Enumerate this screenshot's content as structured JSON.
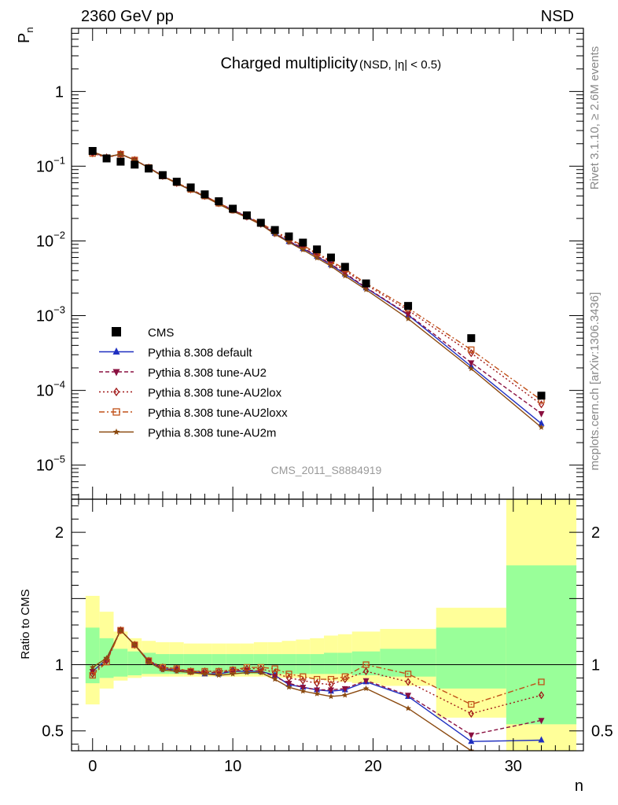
{
  "header": {
    "energy_label": "2360 GeV pp",
    "process_label": "NSD",
    "rivet_label": "Rivet 3.1.10, ≥ 2.6M events",
    "source_label": "mcplots.cern.ch [arXiv:1306.3436]",
    "analysis_id": "CMS_2011_S8884919"
  },
  "chart_data": [
    {
      "type": "scatter",
      "panel": "main",
      "title": "Charged multiplicity",
      "subtitle": "(NSD, |η| < 0.5)",
      "ylabel": "P",
      "ylabel_sub": "n",
      "yscale": "log",
      "ylim": [
        3.5e-06,
        7
      ],
      "xlim": [
        -1.5,
        35
      ],
      "x_ticks": [
        0,
        10,
        20,
        30
      ],
      "y_ticks": [
        {
          "value": 1,
          "base": "1",
          "exp": ""
        },
        {
          "value": 0.1,
          "base": "10",
          "exp": "−1"
        },
        {
          "value": 0.01,
          "base": "10",
          "exp": "−2"
        },
        {
          "value": 0.001,
          "base": "10",
          "exp": "−3"
        },
        {
          "value": 0.0001,
          "base": "10",
          "exp": "−4"
        },
        {
          "value": 1e-05,
          "base": "10",
          "exp": "−5"
        }
      ],
      "legend_position": "bottom-left",
      "x": [
        0,
        1,
        2,
        3,
        4,
        5,
        6,
        7,
        8,
        9,
        10,
        11,
        12,
        13,
        14,
        15,
        16,
        17,
        18,
        19.5,
        22.5,
        27,
        32
      ],
      "data": {
        "name": "CMS",
        "color": "#000000",
        "values": [
          0.16,
          0.127,
          0.115,
          0.105,
          0.093,
          0.076,
          0.062,
          0.052,
          0.042,
          0.034,
          0.027,
          0.022,
          0.0175,
          0.014,
          0.0115,
          0.0095,
          0.0077,
          0.006,
          0.0045,
          0.0027,
          0.00135,
          0.0005,
          8.5e-05
        ]
      },
      "series": [
        {
          "name": "Pythia 8.308 default",
          "color": "#1f2fc0",
          "marker": "triangle-up",
          "dash": "",
          "values": [
            0.152,
            0.132,
            0.145,
            0.121,
            0.096,
            0.074,
            0.059,
            0.048,
            0.039,
            0.032,
            0.026,
            0.021,
            0.0168,
            0.0126,
            0.0098,
            0.0079,
            0.0062,
            0.0048,
            0.0036,
            0.00235,
            0.00102,
            0.00021,
            3.6e-05
          ]
        },
        {
          "name": "Pythia 8.308 tune-AU2",
          "color": "#8a1040",
          "marker": "triangle-down",
          "dash": "5,3",
          "values": [
            0.152,
            0.132,
            0.145,
            0.121,
            0.096,
            0.074,
            0.059,
            0.049,
            0.04,
            0.032,
            0.026,
            0.021,
            0.0168,
            0.0126,
            0.0099,
            0.0081,
            0.0063,
            0.0049,
            0.0037,
            0.00238,
            0.00104,
            0.000235,
            4.9e-05
          ]
        },
        {
          "name": "Pythia 8.308 tune-AU2lox",
          "color": "#a01818",
          "marker": "diamond-open",
          "dash": "2,3",
          "values": [
            0.149,
            0.131,
            0.145,
            0.121,
            0.096,
            0.074,
            0.06,
            0.049,
            0.04,
            0.032,
            0.026,
            0.0215,
            0.017,
            0.0132,
            0.0104,
            0.0085,
            0.0067,
            0.0052,
            0.004,
            0.0026,
            0.00118,
            0.000315,
            6.5e-05
          ]
        },
        {
          "name": "Pythia 8.308 tune-AU2loxx",
          "color": "#c05018",
          "marker": "square-open",
          "dash": "7,3,2,3",
          "values": [
            0.148,
            0.13,
            0.145,
            0.121,
            0.096,
            0.074,
            0.06,
            0.049,
            0.04,
            0.032,
            0.026,
            0.0215,
            0.0172,
            0.0136,
            0.0107,
            0.0087,
            0.0069,
            0.0054,
            0.0042,
            0.0027,
            0.00126,
            0.00035,
            7.4e-05
          ]
        },
        {
          "name": "Pythia 8.308 tune-AU2m",
          "color": "#8b4a10",
          "marker": "star",
          "dash": "",
          "values": [
            0.156,
            0.133,
            0.145,
            0.121,
            0.095,
            0.073,
            0.059,
            0.048,
            0.039,
            0.031,
            0.025,
            0.0205,
            0.0165,
            0.0123,
            0.0096,
            0.0076,
            0.0059,
            0.0046,
            0.0034,
            0.00223,
            0.00091,
            0.000195,
            3.2e-05
          ]
        }
      ]
    },
    {
      "type": "line",
      "panel": "ratio",
      "ylabel": "Ratio to CMS",
      "xlabel": "n",
      "ylim": [
        0.35,
        2.25
      ],
      "xlim": [
        -1.5,
        35
      ],
      "y_ticks": [
        0.5,
        1,
        2
      ],
      "x_ticks": [
        0,
        10,
        20,
        30
      ],
      "reference_line": 1,
      "band_colors": {
        "inner": "#99ff99",
        "outer": "#ffff99"
      },
      "bins": [
        {
          "lo": -0.5,
          "hi": 0.5,
          "in": [
            0.86,
            1.28
          ],
          "out": [
            0.7,
            1.52
          ]
        },
        {
          "lo": 0.5,
          "hi": 1.5,
          "in": [
            0.9,
            1.2
          ],
          "out": [
            0.82,
            1.4
          ]
        },
        {
          "lo": 1.5,
          "hi": 2.5,
          "in": [
            0.91,
            1.12
          ],
          "out": [
            0.88,
            1.25
          ]
        },
        {
          "lo": 2.5,
          "hi": 3.5,
          "in": [
            0.92,
            1.1
          ],
          "out": [
            0.9,
            1.2
          ]
        },
        {
          "lo": 3.5,
          "hi": 4.5,
          "in": [
            0.93,
            1.09
          ],
          "out": [
            0.91,
            1.18
          ]
        },
        {
          "lo": 4.5,
          "hi": 5.5,
          "in": [
            0.93,
            1.08
          ],
          "out": [
            0.91,
            1.17
          ]
        },
        {
          "lo": 5.5,
          "hi": 6.5,
          "in": [
            0.93,
            1.08
          ],
          "out": [
            0.91,
            1.17
          ]
        },
        {
          "lo": 6.5,
          "hi": 7.5,
          "in": [
            0.93,
            1.08
          ],
          "out": [
            0.91,
            1.16
          ]
        },
        {
          "lo": 7.5,
          "hi": 8.5,
          "in": [
            0.93,
            1.08
          ],
          "out": [
            0.91,
            1.16
          ]
        },
        {
          "lo": 8.5,
          "hi": 9.5,
          "in": [
            0.93,
            1.08
          ],
          "out": [
            0.91,
            1.16
          ]
        },
        {
          "lo": 9.5,
          "hi": 10.5,
          "in": [
            0.93,
            1.08
          ],
          "out": [
            0.91,
            1.16
          ]
        },
        {
          "lo": 10.5,
          "hi": 11.5,
          "in": [
            0.93,
            1.08
          ],
          "out": [
            0.91,
            1.16
          ]
        },
        {
          "lo": 11.5,
          "hi": 12.5,
          "in": [
            0.93,
            1.08
          ],
          "out": [
            0.91,
            1.17
          ]
        },
        {
          "lo": 12.5,
          "hi": 13.5,
          "in": [
            0.93,
            1.08
          ],
          "out": [
            0.9,
            1.17
          ]
        },
        {
          "lo": 13.5,
          "hi": 14.5,
          "in": [
            0.93,
            1.08
          ],
          "out": [
            0.9,
            1.18
          ]
        },
        {
          "lo": 14.5,
          "hi": 15.5,
          "in": [
            0.93,
            1.08
          ],
          "out": [
            0.9,
            1.19
          ]
        },
        {
          "lo": 15.5,
          "hi": 16.5,
          "in": [
            0.93,
            1.08
          ],
          "out": [
            0.89,
            1.2
          ]
        },
        {
          "lo": 16.5,
          "hi": 17.5,
          "in": [
            0.93,
            1.09
          ],
          "out": [
            0.88,
            1.22
          ]
        },
        {
          "lo": 17.5,
          "hi": 18.5,
          "in": [
            0.93,
            1.09
          ],
          "out": [
            0.87,
            1.23
          ]
        },
        {
          "lo": 18.5,
          "hi": 20.5,
          "in": [
            0.92,
            1.1
          ],
          "out": [
            0.86,
            1.25
          ]
        },
        {
          "lo": 20.5,
          "hi": 24.5,
          "in": [
            0.91,
            1.12
          ],
          "out": [
            0.84,
            1.27
          ]
        },
        {
          "lo": 24.5,
          "hi": 29.5,
          "in": [
            0.82,
            1.28
          ],
          "out": [
            0.6,
            1.43
          ]
        },
        {
          "lo": 29.5,
          "hi": 34.5,
          "in": [
            0.55,
            1.75
          ],
          "out": [
            0.3,
            2.25
          ]
        }
      ],
      "x": [
        0,
        1,
        2,
        3,
        4,
        5,
        6,
        7,
        8,
        9,
        10,
        11,
        12,
        13,
        14,
        15,
        16,
        17,
        18,
        19.5,
        22.5,
        27,
        32
      ],
      "series": [
        {
          "name": "Pythia 8.308 default",
          "color": "#1f2fc0",
          "marker": "triangle-up",
          "dash": "",
          "values": [
            0.95,
            1.04,
            1.26,
            1.15,
            1.03,
            0.97,
            0.96,
            0.95,
            0.93,
            0.93,
            0.95,
            0.95,
            0.95,
            0.92,
            0.85,
            0.83,
            0.81,
            0.8,
            0.81,
            0.87,
            0.76,
            0.42,
            0.43
          ]
        },
        {
          "name": "Pythia 8.308 tune-AU2",
          "color": "#8a1040",
          "marker": "triangle-down",
          "dash": "5,3",
          "values": [
            0.95,
            1.04,
            1.26,
            1.15,
            1.03,
            0.97,
            0.96,
            0.95,
            0.94,
            0.94,
            0.95,
            0.96,
            0.95,
            0.91,
            0.86,
            0.83,
            0.81,
            0.81,
            0.82,
            0.88,
            0.77,
            0.47,
            0.58
          ]
        },
        {
          "name": "Pythia 8.308 tune-AU2lox",
          "color": "#a01818",
          "marker": "diamond-open",
          "dash": "2,3",
          "values": [
            0.93,
            1.03,
            1.26,
            1.15,
            1.03,
            0.98,
            0.97,
            0.95,
            0.95,
            0.95,
            0.96,
            0.97,
            0.97,
            0.94,
            0.9,
            0.88,
            0.86,
            0.85,
            0.89,
            0.95,
            0.87,
            0.63,
            0.77
          ]
        },
        {
          "name": "Pythia 8.308 tune-AU2loxx",
          "color": "#c05018",
          "marker": "square-open",
          "dash": "7,3,2,3",
          "values": [
            0.92,
            1.02,
            1.26,
            1.15,
            1.03,
            0.98,
            0.97,
            0.95,
            0.95,
            0.95,
            0.96,
            0.98,
            0.98,
            0.97,
            0.93,
            0.91,
            0.89,
            0.89,
            0.91,
            1.0,
            0.93,
            0.7,
            0.87
          ]
        },
        {
          "name": "Pythia 8.308 tune-AU2m",
          "color": "#8b4a10",
          "marker": "star",
          "dash": "",
          "values": [
            0.98,
            1.05,
            1.26,
            1.15,
            1.02,
            0.96,
            0.95,
            0.94,
            0.93,
            0.92,
            0.93,
            0.94,
            0.94,
            0.89,
            0.83,
            0.8,
            0.78,
            0.76,
            0.77,
            0.82,
            0.67,
            0.35,
            0.3
          ]
        }
      ]
    }
  ]
}
